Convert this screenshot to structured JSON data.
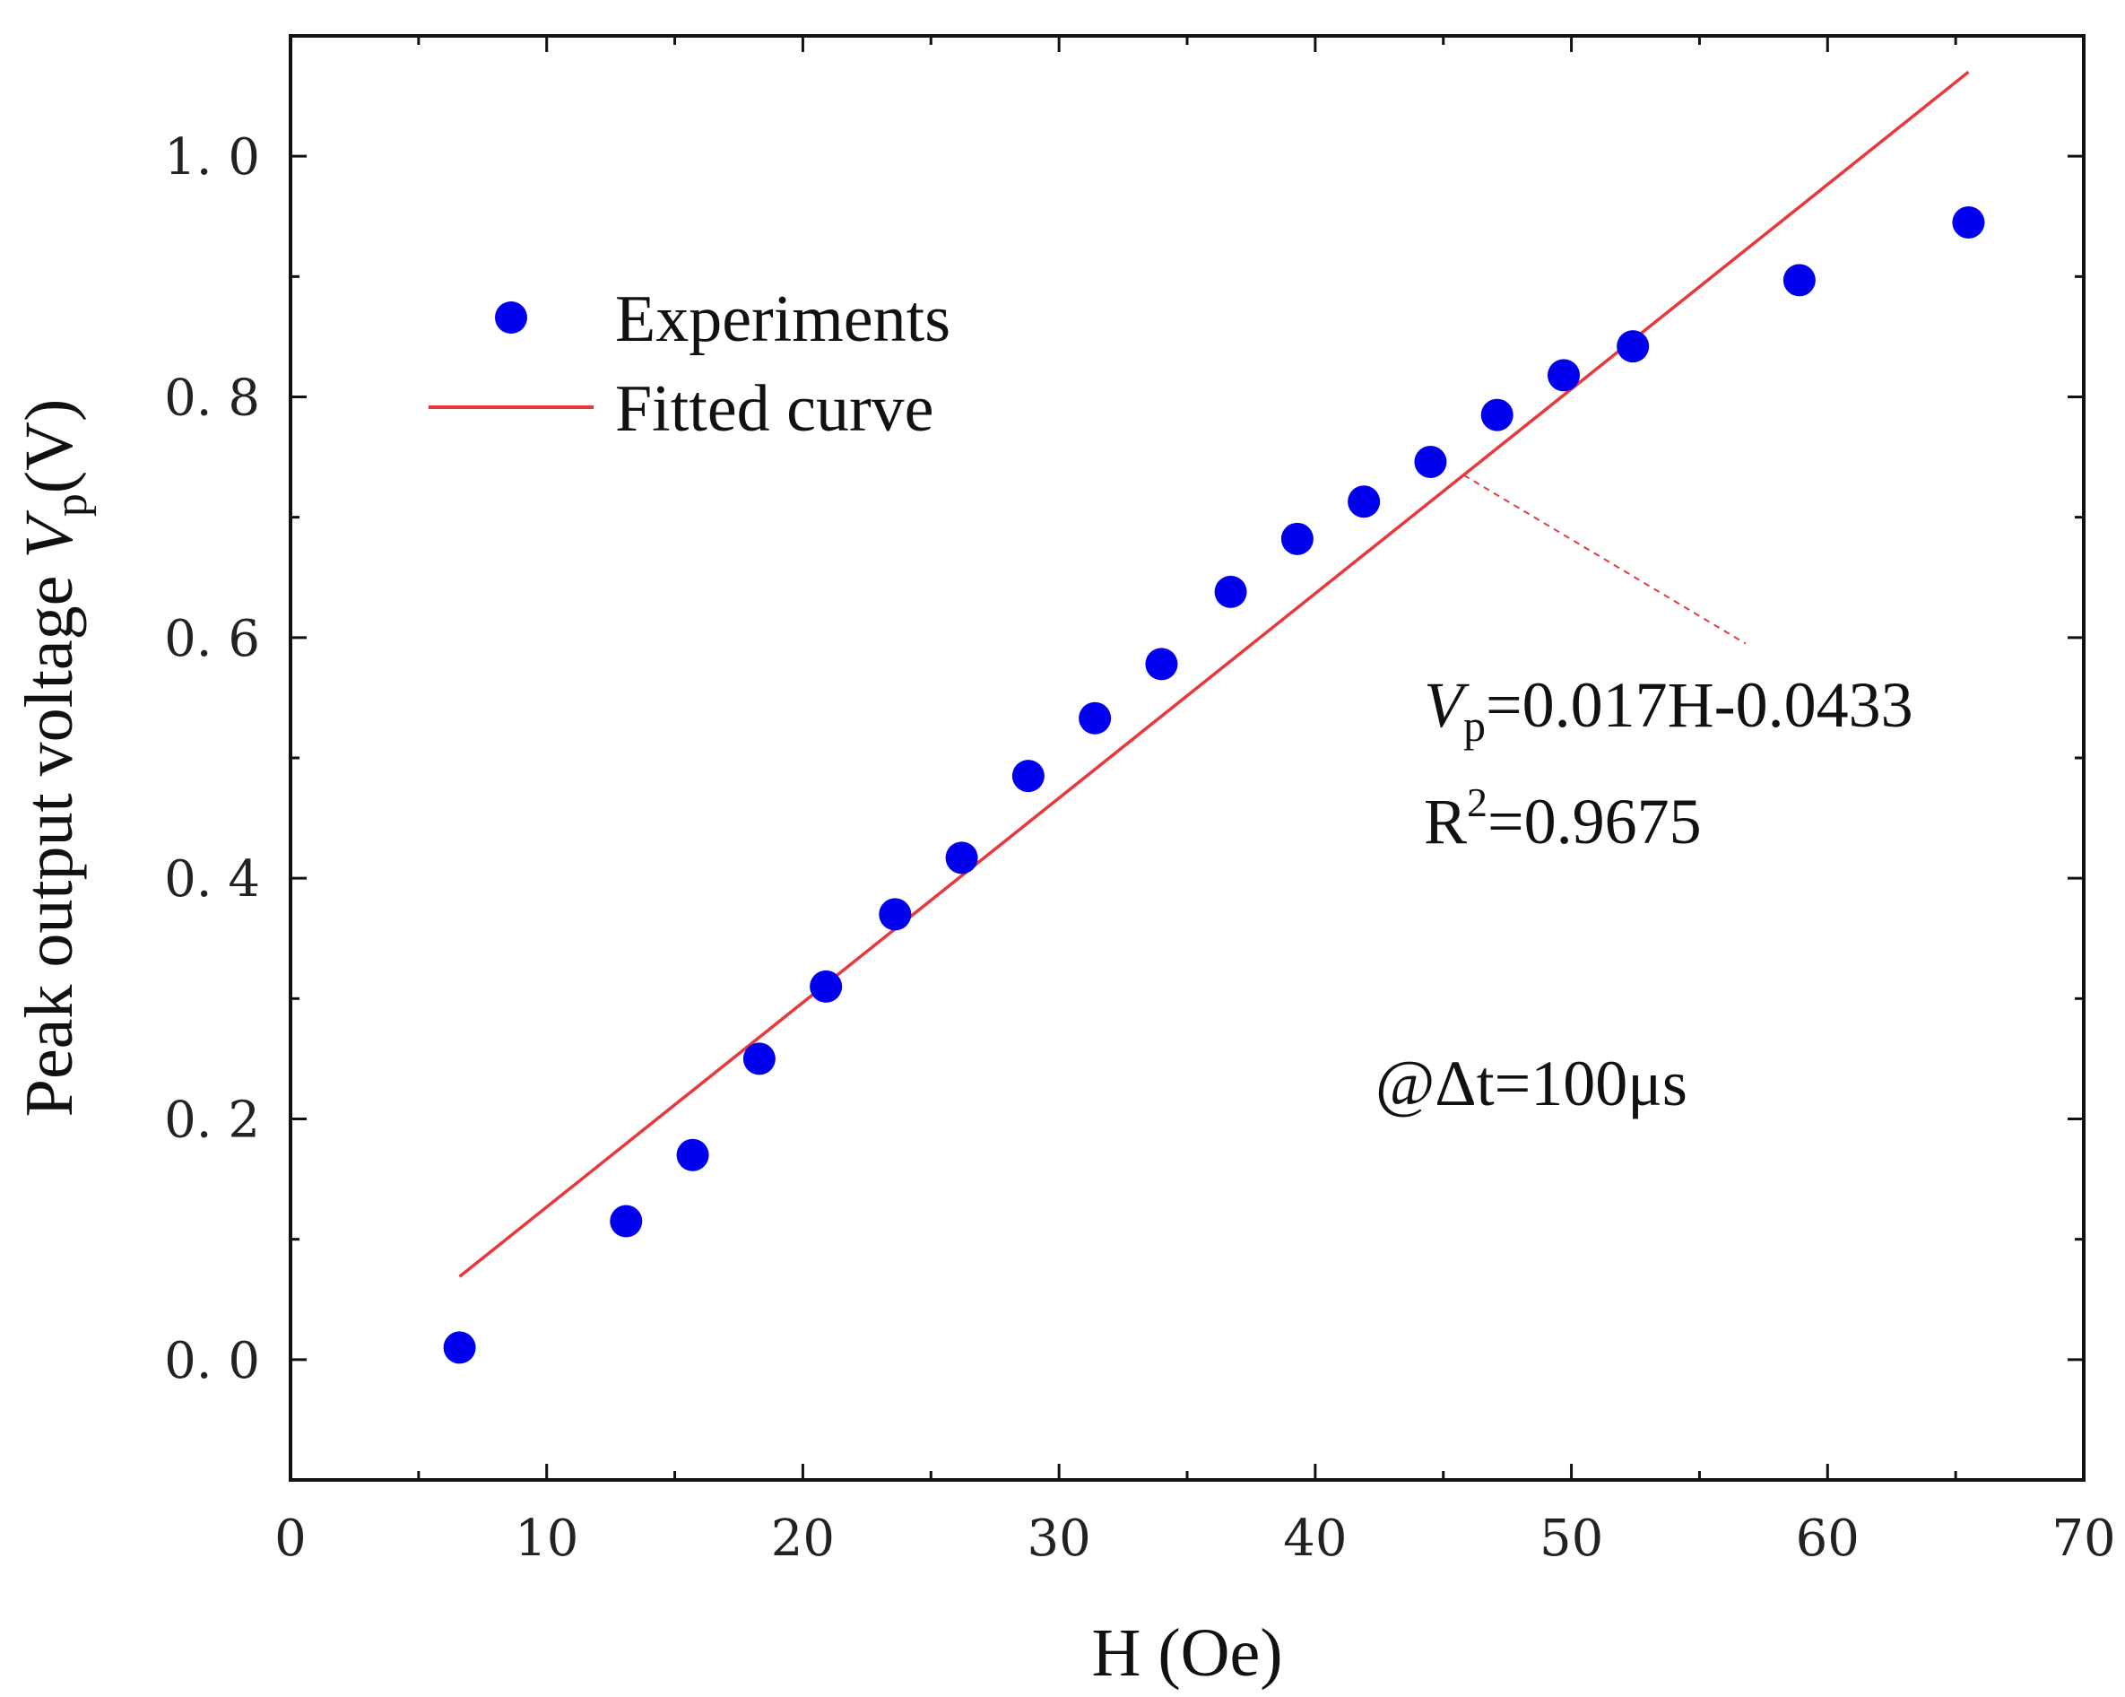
{
  "chart_data": {
    "type": "scatter",
    "xlabel": "H (Oe)",
    "ylabel": {
      "prefix": "Peak output voltage ",
      "var": "V",
      "sub": "p",
      "suffix": "(V)"
    },
    "xlim": [
      0,
      70
    ],
    "ylim": [
      -0.1,
      1.1
    ],
    "x_ticks": [
      0,
      10,
      20,
      30,
      40,
      50,
      60,
      70
    ],
    "y_ticks": [
      0.0,
      0.2,
      0.4,
      0.6,
      0.8,
      1.0
    ],
    "x_tick_labels": [
      "0",
      "10",
      "20",
      "30",
      "40",
      "50",
      "60",
      "70"
    ],
    "y_tick_labels": [
      "0. 0",
      "0. 2",
      "0. 4",
      "0. 6",
      "0. 8",
      "1. 0"
    ],
    "x_minor_ticks": [
      5,
      15,
      25,
      35,
      45,
      55,
      65
    ],
    "y_minor_ticks": [
      -0.1,
      0.1,
      0.3,
      0.5,
      0.7,
      0.9,
      1.1
    ],
    "grid": false,
    "legend": {
      "placement": "top-left",
      "entries": [
        {
          "label": "Experiments",
          "marker": "circle",
          "color": "#0000ee"
        },
        {
          "label": "Fitted curve",
          "marker": "line",
          "color": "#e8383c"
        }
      ]
    },
    "series": [
      {
        "name": "Experiments",
        "type": "scatter",
        "color": "#0000ee",
        "x": [
          6.6,
          13.1,
          15.7,
          18.3,
          20.9,
          23.6,
          26.2,
          28.8,
          31.4,
          34.0,
          36.7,
          39.3,
          41.9,
          44.5,
          47.1,
          49.7,
          52.4,
          58.9,
          65.5
        ],
        "y": [
          0.01,
          0.115,
          0.17,
          0.25,
          0.31,
          0.37,
          0.417,
          0.485,
          0.533,
          0.578,
          0.638,
          0.682,
          0.713,
          0.746,
          0.785,
          0.818,
          0.842,
          0.897,
          0.945
        ]
      },
      {
        "name": "Fitted curve",
        "type": "line",
        "color": "#e8383c",
        "x": [
          6.6,
          65.5
        ],
        "y": [
          0.069,
          1.07
        ]
      }
    ],
    "annotations": {
      "equation": {
        "var": "V",
        "sub": "p",
        "rest": "=0.017H-0.0433"
      },
      "r_squared": {
        "base": "R",
        "sup": "2",
        "rest": "=0.9675"
      },
      "condition": "@Δt=100μs",
      "leader_line": {
        "from": [
          45.8,
          0.735
        ],
        "to": [
          56.8,
          0.595
        ],
        "color": "#e8383c",
        "dashed": true
      }
    }
  }
}
